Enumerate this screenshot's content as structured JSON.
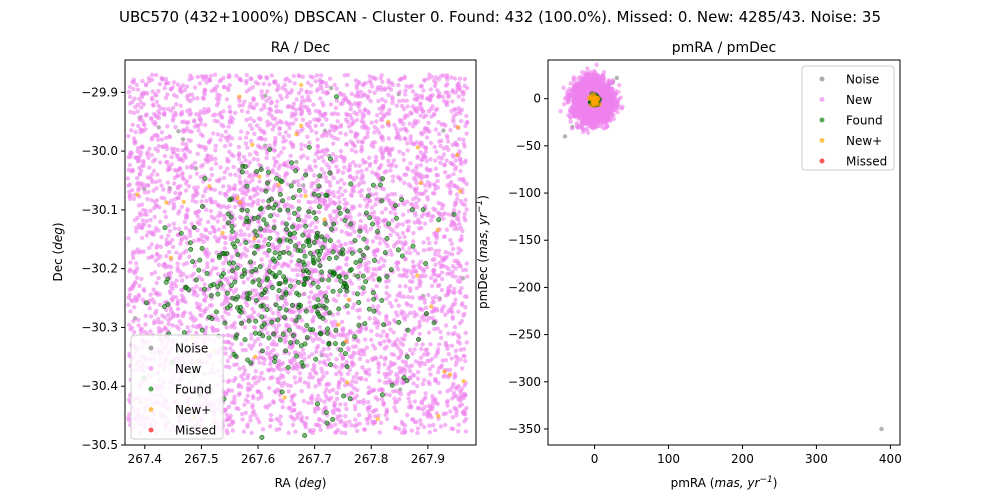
{
  "figure": {
    "suptitle": "UBC570 (432+1000%) DBSCAN - Cluster 0. Found: 432 (100.0%). Missed: 0. New: 4285/43. Noise: 35"
  },
  "colors": {
    "Noise": "#808080",
    "New": "#ee82ee",
    "Found": "#008000",
    "New+": "#ffa500",
    "Missed": "#ff0000"
  },
  "chart_data": [
    {
      "type": "scatter",
      "title": "RA / Dec",
      "xlabel": "RA (deg)",
      "ylabel": "Dec (deg)",
      "xlim": [
        267.365,
        267.985
      ],
      "ylim": [
        -30.5,
        -29.845
      ],
      "xticks": [
        267.4,
        267.5,
        267.6,
        267.7,
        267.8,
        267.9
      ],
      "xtick_labels": [
        "267.4",
        "267.5",
        "267.6",
        "267.7",
        "267.8",
        "267.9"
      ],
      "yticks": [
        -29.9,
        -30.0,
        -30.1,
        -30.2,
        -30.3,
        -30.4,
        -30.5
      ],
      "ytick_labels": [
        "−29.9",
        "−30.0",
        "−30.1",
        "−30.2",
        "−30.3",
        "−30.4",
        "−30.5"
      ],
      "legend": {
        "position": "lower-left",
        "entries": [
          "Noise",
          "New",
          "Found",
          "New+",
          "Missed"
        ]
      },
      "series": [
        {
          "name": "Noise",
          "distribution": "uniform",
          "x_range": [
            267.37,
            267.97
          ],
          "y_range": [
            -30.48,
            -29.87
          ],
          "count": 35
        },
        {
          "name": "New",
          "distribution": "uniform",
          "x_range": [
            267.37,
            267.97
          ],
          "y_range": [
            -30.48,
            -29.87
          ],
          "count": 4285
        },
        {
          "name": "Found",
          "distribution": "cluster",
          "center": [
            267.67,
            -30.21
          ],
          "spread": [
            0.1,
            0.09
          ],
          "count": 432
        },
        {
          "name": "New+",
          "distribution": "uniform",
          "x_range": [
            267.37,
            267.97
          ],
          "y_range": [
            -30.48,
            -29.87
          ],
          "count": 43
        },
        {
          "name": "Missed",
          "count": 0
        }
      ]
    },
    {
      "type": "scatter",
      "title": "pmRA / pmDec",
      "xlabel": "pmRA (mas, yr−1)",
      "ylabel": "pmDec (mas, yr−1)",
      "xlim": [
        -63,
        413
      ],
      "ylim": [
        -367,
        41
      ],
      "xticks": [
        0,
        100,
        200,
        300,
        400
      ],
      "xtick_labels": [
        "0",
        "100",
        "200",
        "300",
        "400"
      ],
      "yticks": [
        0,
        -50,
        -100,
        -150,
        -200,
        -250,
        -300,
        -350
      ],
      "ytick_labels": [
        "0",
        "−50",
        "−100",
        "−150",
        "−200",
        "−250",
        "−300",
        "−350"
      ],
      "legend": {
        "position": "upper-right",
        "entries": [
          "Noise",
          "New",
          "Found",
          "New+",
          "Missed"
        ]
      },
      "series": [
        {
          "name": "Noise",
          "points": [
            [
              -15,
              17
            ],
            [
              -12,
              2
            ],
            [
              -18,
              -13
            ],
            [
              -22,
              -10
            ],
            [
              -40,
              -40
            ],
            [
              -30,
              -30
            ],
            [
              25,
              18
            ],
            [
              30,
              22
            ],
            [
              20,
              15
            ],
            [
              -20,
              8
            ],
            [
              18,
              -20
            ],
            [
              -10,
              -25
            ],
            [
              388,
              -350
            ]
          ]
        },
        {
          "name": "New",
          "distribution": "cluster",
          "center": [
            -2,
            -2
          ],
          "spread": [
            12,
            10
          ],
          "count": 4285
        },
        {
          "name": "Found",
          "distribution": "cluster",
          "center": [
            0,
            -2
          ],
          "spread": [
            2,
            2
          ],
          "count": 432
        },
        {
          "name": "New+",
          "distribution": "cluster",
          "center": [
            0,
            -2
          ],
          "spread": [
            3,
            3
          ],
          "count": 43
        },
        {
          "name": "Missed",
          "count": 0
        }
      ]
    }
  ]
}
